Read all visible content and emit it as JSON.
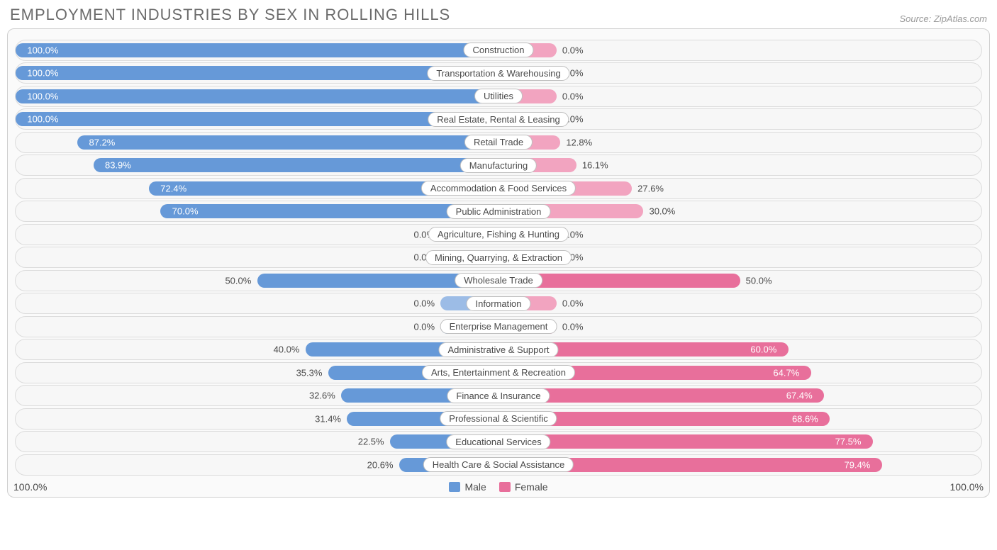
{
  "title": "EMPLOYMENT INDUSTRIES BY SEX IN ROLLING HILLS",
  "source": "Source: ZipAtlas.com",
  "colors": {
    "male_full": "#6699d8",
    "male_light": "#9cbce6",
    "female_full": "#e86f9b",
    "female_light": "#f2a4c0",
    "row_bg": "#f7f7f7",
    "row_border": "#dcdcdc",
    "chart_border": "#cfcfcf",
    "text": "#4a4a4a"
  },
  "axis": {
    "left": "100.0%",
    "right": "100.0%"
  },
  "legend": {
    "male": "Male",
    "female": "Female"
  },
  "halfWidthPct": 50,
  "insideThreshold": 60,
  "rows": [
    {
      "label": "Construction",
      "male": 100.0,
      "female": 0.0,
      "male_full": true,
      "female_full": false
    },
    {
      "label": "Transportation & Warehousing",
      "male": 100.0,
      "female": 0.0,
      "male_full": true,
      "female_full": false
    },
    {
      "label": "Utilities",
      "male": 100.0,
      "female": 0.0,
      "male_full": true,
      "female_full": false
    },
    {
      "label": "Real Estate, Rental & Leasing",
      "male": 100.0,
      "female": 0.0,
      "male_full": true,
      "female_full": false
    },
    {
      "label": "Retail Trade",
      "male": 87.2,
      "female": 12.8,
      "male_full": true,
      "female_full": false
    },
    {
      "label": "Manufacturing",
      "male": 83.9,
      "female": 16.1,
      "male_full": true,
      "female_full": false
    },
    {
      "label": "Accommodation & Food Services",
      "male": 72.4,
      "female": 27.6,
      "male_full": true,
      "female_full": false
    },
    {
      "label": "Public Administration",
      "male": 70.0,
      "female": 30.0,
      "male_full": true,
      "female_full": false
    },
    {
      "label": "Agriculture, Fishing & Hunting",
      "male": 0.0,
      "female": 0.0,
      "male_full": false,
      "female_full": false
    },
    {
      "label": "Mining, Quarrying, & Extraction",
      "male": 0.0,
      "female": 0.0,
      "male_full": false,
      "female_full": false
    },
    {
      "label": "Wholesale Trade",
      "male": 50.0,
      "female": 50.0,
      "male_full": true,
      "female_full": true
    },
    {
      "label": "Information",
      "male": 0.0,
      "female": 0.0,
      "male_full": false,
      "female_full": false
    },
    {
      "label": "Enterprise Management",
      "male": 0.0,
      "female": 0.0,
      "male_full": false,
      "female_full": false
    },
    {
      "label": "Administrative & Support",
      "male": 40.0,
      "female": 60.0,
      "male_full": true,
      "female_full": true
    },
    {
      "label": "Arts, Entertainment & Recreation",
      "male": 35.3,
      "female": 64.7,
      "male_full": true,
      "female_full": true
    },
    {
      "label": "Finance & Insurance",
      "male": 32.6,
      "female": 67.4,
      "male_full": true,
      "female_full": true
    },
    {
      "label": "Professional & Scientific",
      "male": 31.4,
      "female": 68.6,
      "male_full": true,
      "female_full": true
    },
    {
      "label": "Educational Services",
      "male": 22.5,
      "female": 77.5,
      "male_full": true,
      "female_full": true
    },
    {
      "label": "Health Care & Social Assistance",
      "male": 20.6,
      "female": 79.4,
      "male_full": true,
      "female_full": true
    }
  ],
  "stubBarPct": 12
}
